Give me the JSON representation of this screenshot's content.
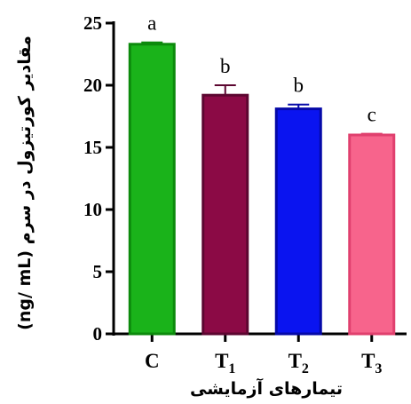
{
  "chart_data": {
    "type": "bar",
    "categories": [
      "C",
      "T1",
      "T2",
      "T3"
    ],
    "category_labels": [
      {
        "main": "C",
        "sub": ""
      },
      {
        "main": "T",
        "sub": "1"
      },
      {
        "main": "T",
        "sub": "2"
      },
      {
        "main": "T",
        "sub": "3"
      }
    ],
    "values": [
      23.3,
      19.2,
      18.1,
      16.0
    ],
    "errors": [
      0.15,
      0.8,
      0.35,
      0.1
    ],
    "significance": [
      "a",
      "b",
      "b",
      "c"
    ],
    "colors": [
      "#1ab31a",
      "#8b0a45",
      "#0a14f0",
      "#f7648c"
    ],
    "edge_colors": [
      "#0c8a0c",
      "#5c0630",
      "#0509a8",
      "#e0406e"
    ],
    "xlabel": "تیمارهای آزمایشی",
    "ylabel": "مقادیر کورتیزول در سرم (ng/ mL)",
    "yticks": [
      0,
      5,
      10,
      15,
      20,
      25
    ],
    "ylim": [
      0,
      25
    ],
    "grid": false,
    "legend": "none"
  }
}
